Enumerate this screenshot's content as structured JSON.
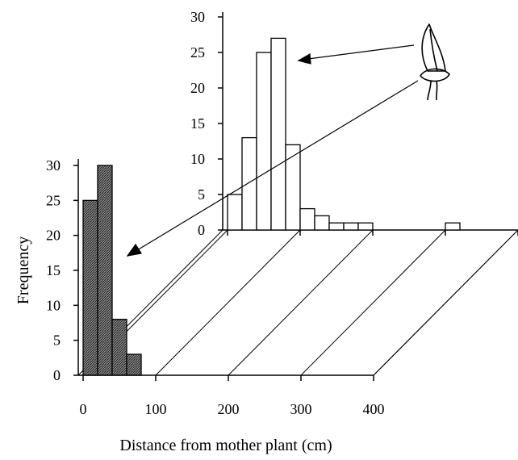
{
  "chart_data": {
    "type": "bar",
    "xlabel": "Distance from mother plant (cm)",
    "ylabel": "Frequency",
    "xlim": [
      0,
      400
    ],
    "ylim": [
      0,
      30
    ],
    "x_ticks": [
      "0",
      "100",
      "200",
      "300",
      "400"
    ],
    "y_ticks": [
      "0",
      "5",
      "10",
      "15",
      "20",
      "25",
      "30"
    ],
    "bin_width": 20,
    "series": [
      {
        "values": [
          25,
          30,
          8,
          3,
          0,
          0,
          0,
          0,
          0,
          0,
          0,
          0,
          0,
          0,
          0,
          0,
          0,
          0,
          0,
          0
        ],
        "color": "#555555"
      },
      {
        "values": [
          5,
          13,
          25,
          27,
          12,
          3,
          2,
          1,
          1,
          1,
          0,
          0,
          0,
          0,
          0,
          1,
          0,
          0,
          0,
          0
        ],
        "color": "#ffffff"
      }
    ]
  }
}
